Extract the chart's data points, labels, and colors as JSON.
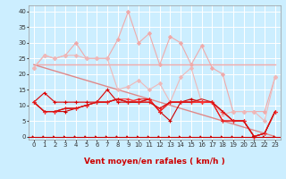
{
  "xlabel": "Vent moyen/en rafales ( km/h )",
  "bg_color": "#cceeff",
  "grid_color": "#ffffff",
  "x_ticks": [
    0,
    1,
    2,
    3,
    4,
    5,
    6,
    7,
    8,
    9,
    10,
    11,
    12,
    13,
    14,
    15,
    16,
    17,
    18,
    19,
    20,
    21,
    22,
    23
  ],
  "ylim": [
    -1,
    42
  ],
  "y_ticks": [
    0,
    5,
    10,
    15,
    20,
    25,
    30,
    35,
    40
  ],
  "lines": [
    {
      "x": [
        0,
        23
      ],
      "y": [
        23,
        23
      ],
      "color": "#f0aaaa",
      "lw": 1.0,
      "marker": null
    },
    {
      "x": [
        0,
        23
      ],
      "y": [
        23,
        0
      ],
      "color": "#e08888",
      "lw": 1.0,
      "marker": null
    },
    {
      "x": [
        0,
        1,
        2,
        3,
        4,
        5,
        6,
        7,
        8,
        9,
        10,
        11,
        12,
        13,
        14,
        15,
        16,
        17,
        18,
        19,
        20,
        21,
        22,
        23
      ],
      "y": [
        22,
        26,
        25,
        26,
        30,
        25,
        25,
        25,
        31,
        40,
        30,
        33,
        23,
        32,
        30,
        23,
        29,
        22,
        20,
        8,
        8,
        8,
        8,
        19
      ],
      "color": "#f0aaaa",
      "lw": 0.8,
      "marker": "D",
      "markersize": 2
    },
    {
      "x": [
        0,
        1,
        2,
        3,
        4,
        5,
        6,
        7,
        8,
        9,
        10,
        11,
        12,
        13,
        14,
        15,
        16,
        17,
        18,
        19,
        20,
        21,
        22,
        23
      ],
      "y": [
        22,
        26,
        25,
        26,
        26,
        25,
        25,
        25,
        15,
        16,
        18,
        15,
        17,
        11,
        19,
        22,
        11,
        11,
        7,
        8,
        8,
        8,
        5,
        19
      ],
      "color": "#f0b8b8",
      "lw": 0.8,
      "marker": "D",
      "markersize": 2
    },
    {
      "x": [
        0,
        1,
        2,
        3,
        4,
        5,
        6,
        7,
        8,
        9,
        10,
        11,
        12,
        13,
        14,
        15,
        16,
        17,
        18,
        19,
        20,
        21,
        22,
        23
      ],
      "y": [
        11,
        8,
        8,
        8,
        9,
        10,
        11,
        11,
        12,
        11,
        11,
        12,
        8,
        5,
        11,
        12,
        11,
        11,
        8,
        5,
        5,
        0,
        1,
        8
      ],
      "color": "#cc0000",
      "lw": 0.8,
      "marker": "+",
      "markersize": 3
    },
    {
      "x": [
        0,
        1,
        2,
        3,
        4,
        5,
        6,
        7,
        8,
        9,
        10,
        11,
        12,
        13,
        14,
        15,
        16,
        17,
        18,
        19,
        20,
        21,
        22,
        23
      ],
      "y": [
        11,
        14,
        11,
        11,
        11,
        11,
        11,
        15,
        11,
        11,
        11,
        12,
        8,
        11,
        11,
        11,
        11,
        11,
        5,
        5,
        5,
        0,
        1,
        8
      ],
      "color": "#dd0000",
      "lw": 0.8,
      "marker": "+",
      "markersize": 3
    },
    {
      "x": [
        0,
        1,
        2,
        3,
        4,
        5,
        6,
        7,
        8,
        9,
        10,
        11,
        12,
        13,
        14,
        15,
        16,
        17,
        18,
        19,
        20,
        21,
        22,
        23
      ],
      "y": [
        11,
        8,
        8,
        9,
        9,
        10,
        11,
        11,
        12,
        11,
        12,
        12,
        8,
        11,
        11,
        11,
        11,
        11,
        5,
        5,
        5,
        0,
        1,
        8
      ],
      "color": "#ee2222",
      "lw": 0.8,
      "marker": "+",
      "markersize": 3
    },
    {
      "x": [
        0,
        1,
        2,
        3,
        4,
        5,
        6,
        7,
        8,
        9,
        10,
        11,
        12,
        13,
        14,
        15,
        16,
        17,
        18,
        19,
        20,
        21,
        22,
        23
      ],
      "y": [
        11,
        8,
        8,
        9,
        9,
        10,
        11,
        11,
        12,
        12,
        11,
        11,
        9,
        11,
        11,
        11,
        11,
        11,
        8,
        5,
        5,
        0,
        1,
        8
      ],
      "color": "#ff3333",
      "lw": 0.8,
      "marker": "+",
      "markersize": 3
    },
    {
      "x": [
        0,
        1,
        2,
        3,
        4,
        5,
        6,
        7,
        8,
        9,
        10,
        11,
        12,
        13,
        14,
        15,
        16,
        17,
        18,
        19,
        20,
        21,
        22,
        23
      ],
      "y": [
        11,
        8,
        8,
        9,
        9,
        10,
        11,
        11,
        12,
        11,
        11,
        11,
        9,
        11,
        11,
        11,
        12,
        11,
        8,
        5,
        5,
        0,
        1,
        8
      ],
      "color": "#cc1111",
      "lw": 0.8,
      "marker": null
    }
  ],
  "tick_fontsize": 5.0,
  "xlabel_fontsize": 6.5,
  "arrow_color": "#cc0000"
}
